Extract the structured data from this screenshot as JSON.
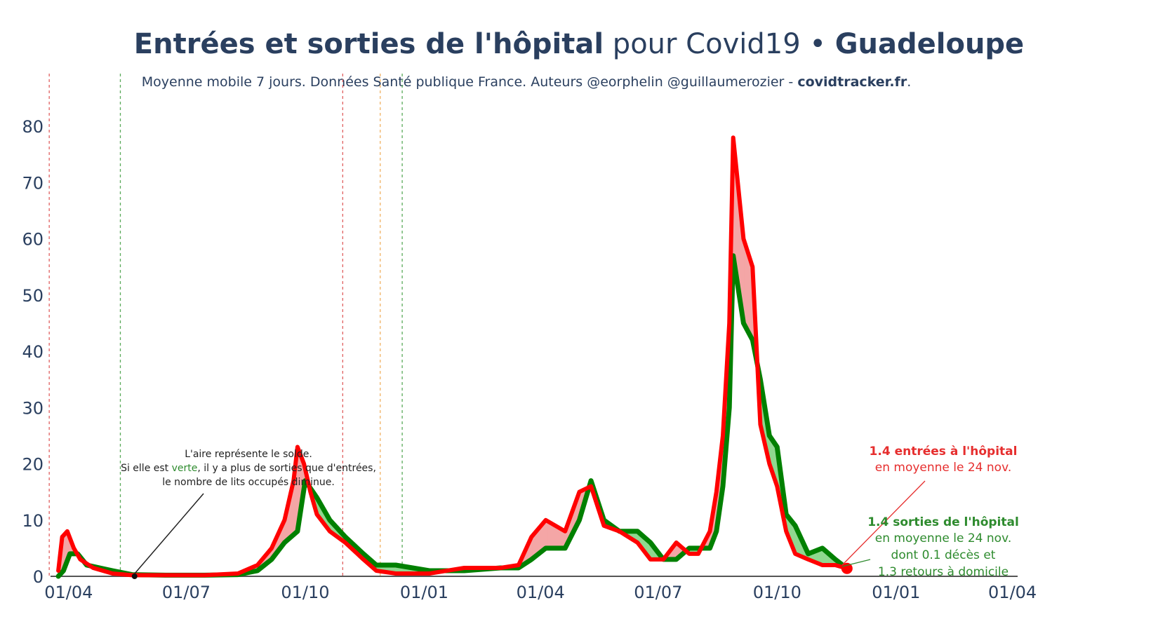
{
  "title": {
    "part1": "Entrées et sorties de l'hôpital",
    "part2": " pour Covid19 • ",
    "part3": "Guadeloupe"
  },
  "subtitle": {
    "text": "Moyenne mobile 7 jours. Données Santé publique France. Auteurs @eorphelin @guillaumerozier - ",
    "site": "covidtracker.fr",
    "end": "."
  },
  "note": {
    "line1": "L'aire représente le solde.",
    "line2_a": "Si elle est ",
    "line2_b": "verte",
    "line2_c": ", il y a plus de sorties que d'entrées,",
    "line3": "le nombre de lits occupés diminue."
  },
  "annotations": {
    "entries_value": "1.4 entrées à l'hôpital",
    "entries_sub": "en moyenne le 24 nov.",
    "exits_value": "1.4 sorties de l'hôpital",
    "exits_sub": "en moyenne le 24 nov.",
    "exits_deaths": "dont 0.1 décès et",
    "exits_home": "1.3 retours à domicile"
  },
  "colors": {
    "entries": "#ff0000",
    "exits": "#008000",
    "area_red": "#f4a6a6",
    "area_green": "#8fd88f",
    "text": "#2a3f5f"
  },
  "chart_data": {
    "type": "line",
    "x_range": [
      "2020-03-18",
      "2022-04-05"
    ],
    "ylim": [
      0,
      85
    ],
    "y_ticks": [
      0,
      10,
      20,
      30,
      40,
      50,
      60,
      70,
      80
    ],
    "x_ticks": [
      {
        "date": "2020-04-01",
        "label": "01/04"
      },
      {
        "date": "2020-07-01",
        "label": "01/07"
      },
      {
        "date": "2020-10-01",
        "label": "01/10"
      },
      {
        "date": "2021-01-01",
        "label": "01/01"
      },
      {
        "date": "2021-04-01",
        "label": "01/04"
      },
      {
        "date": "2021-07-01",
        "label": "01/07"
      },
      {
        "date": "2021-10-01",
        "label": "01/10"
      },
      {
        "date": "2022-01-01",
        "label": "01/01"
      },
      {
        "date": "2022-04-01",
        "label": "01/04"
      }
    ],
    "vlines": [
      {
        "date": "2020-03-17",
        "color": "#e06060"
      },
      {
        "date": "2020-05-11",
        "color": "#5aaa5a"
      },
      {
        "date": "2020-10-30",
        "color": "#e06060"
      },
      {
        "date": "2020-11-28",
        "color": "#f0b060"
      },
      {
        "date": "2020-12-15",
        "color": "#5aaa5a"
      }
    ],
    "series": [
      {
        "key": "entries",
        "x": [
          "2020-03-24",
          "2020-03-27",
          "2020-03-31",
          "2020-04-05",
          "2020-04-10",
          "2020-04-20",
          "2020-05-05",
          "2020-05-20",
          "2020-06-15",
          "2020-07-15",
          "2020-08-10",
          "2020-08-25",
          "2020-09-05",
          "2020-09-15",
          "2020-09-22",
          "2020-09-25",
          "2020-09-30",
          "2020-10-05",
          "2020-10-10",
          "2020-10-20",
          "2020-11-01",
          "2020-11-15",
          "2020-11-25",
          "2020-12-10",
          "2021-01-05",
          "2021-02-01",
          "2021-03-01",
          "2021-03-15",
          "2021-03-25",
          "2021-04-05",
          "2021-04-20",
          "2021-05-01",
          "2021-05-10",
          "2021-05-20",
          "2021-06-01",
          "2021-06-15",
          "2021-06-25",
          "2021-07-05",
          "2021-07-15",
          "2021-07-25",
          "2021-08-01",
          "2021-08-10",
          "2021-08-15",
          "2021-08-20",
          "2021-08-25",
          "2021-08-28",
          "2021-09-05",
          "2021-09-12",
          "2021-09-18",
          "2021-09-25",
          "2021-10-01",
          "2021-10-08",
          "2021-10-15",
          "2021-10-25",
          "2021-11-05",
          "2021-11-15",
          "2021-11-24"
        ],
        "values": [
          1,
          7,
          8,
          5,
          3,
          1.5,
          0.5,
          0.2,
          0.2,
          0.2,
          0.5,
          2,
          5,
          10,
          17,
          23,
          20,
          15,
          11,
          8,
          6,
          3,
          1,
          0.5,
          0.5,
          1.5,
          1.5,
          2,
          7,
          10,
          8,
          15,
          16,
          9,
          8,
          6,
          3,
          3,
          6,
          4,
          4,
          8,
          15,
          25,
          45,
          78,
          60,
          55,
          27,
          20,
          16,
          8,
          4,
          3,
          2,
          2,
          1.4
        ]
      },
      {
        "key": "exits",
        "x": [
          "2020-03-24",
          "2020-03-28",
          "2020-04-02",
          "2020-04-08",
          "2020-04-15",
          "2020-04-25",
          "2020-05-05",
          "2020-05-20",
          "2020-06-15",
          "2020-07-15",
          "2020-08-10",
          "2020-08-25",
          "2020-09-05",
          "2020-09-15",
          "2020-09-25",
          "2020-10-01",
          "2020-10-10",
          "2020-10-20",
          "2020-11-01",
          "2020-11-15",
          "2020-11-25",
          "2020-12-10",
          "2021-01-05",
          "2021-02-01",
          "2021-03-01",
          "2021-03-15",
          "2021-03-25",
          "2021-04-05",
          "2021-04-20",
          "2021-05-01",
          "2021-05-10",
          "2021-05-20",
          "2021-06-01",
          "2021-06-15",
          "2021-06-25",
          "2021-07-05",
          "2021-07-15",
          "2021-07-25",
          "2021-08-01",
          "2021-08-10",
          "2021-08-15",
          "2021-08-20",
          "2021-08-25",
          "2021-08-28",
          "2021-09-05",
          "2021-09-12",
          "2021-09-18",
          "2021-09-25",
          "2021-10-01",
          "2021-10-08",
          "2021-10-15",
          "2021-10-25",
          "2021-11-05",
          "2021-11-15",
          "2021-11-24"
        ],
        "values": [
          0,
          1,
          4,
          4,
          2,
          1.5,
          1,
          0.3,
          0.2,
          0.2,
          0.3,
          1,
          3,
          6,
          8,
          17,
          14,
          10,
          7,
          4,
          2,
          2,
          1,
          1,
          1.5,
          1.5,
          3,
          5,
          5,
          10,
          17,
          10,
          8,
          8,
          6,
          3,
          3,
          5,
          5,
          5,
          8,
          16,
          30,
          57,
          45,
          42,
          35,
          25,
          23,
          11,
          9,
          4,
          5,
          3,
          1.4
        ]
      }
    ],
    "point_marker": {
      "date": "2020-05-22",
      "value": 0
    },
    "endpoint": {
      "date": "2021-11-24",
      "value": 1.4
    }
  }
}
